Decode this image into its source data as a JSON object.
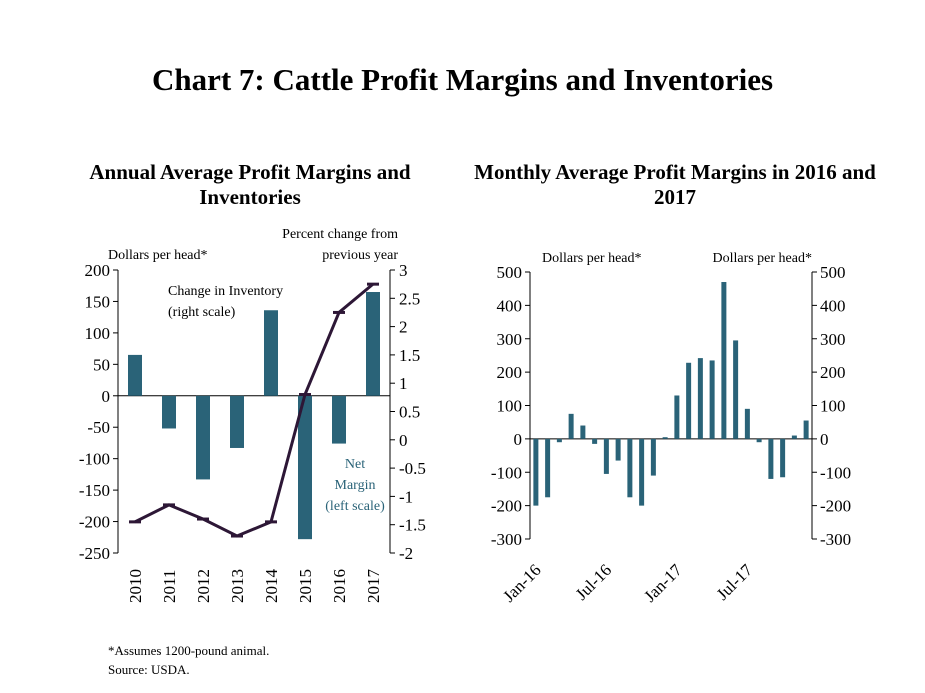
{
  "title": "Chart 7: Cattle Profit Margins and Inventories",
  "footnotes": {
    "assumption": "*Assumes 1200-pound animal.",
    "source": "Source: USDA."
  },
  "colors": {
    "bar": "#2a6378",
    "line": "#2d1736",
    "axis": "#000000"
  },
  "chart_data": [
    {
      "type": "bar",
      "title": "Annual Average Profit Margins and Inventories",
      "left_axis_label": "Dollars per head*",
      "right_axis_label_line1": "Percent change from",
      "right_axis_label_line2": "previous year",
      "categories": [
        "2010",
        "2011",
        "2012",
        "2013",
        "2014",
        "2015",
        "2016",
        "2017"
      ],
      "series": [
        {
          "name": "Net Margin (left scale)",
          "type": "bar",
          "axis": "left",
          "values": [
            65,
            -52,
            -133,
            -83,
            136,
            -228,
            -76,
            165
          ]
        },
        {
          "name": "Change in Inventory (right scale)",
          "type": "line",
          "axis": "right",
          "values": [
            -1.45,
            -1.15,
            -1.4,
            -1.7,
            -1.45,
            0.8,
            2.25,
            2.75
          ]
        }
      ],
      "annotations": {
        "line_label_1": "Change in Inventory",
        "line_label_2": "(right scale)",
        "bar_label_1": "Net",
        "bar_label_2": "Margin",
        "bar_label_3": "(left scale)"
      },
      "ylim_left": [
        -250,
        200
      ],
      "ylim_right": [
        -2,
        3
      ],
      "left_ticks": [
        "200",
        "150",
        "100",
        "50",
        "0",
        "-50",
        "-100",
        "-150",
        "-200",
        "-250"
      ],
      "right_ticks": [
        "3",
        "2.5",
        "2",
        "1.5",
        "1",
        "0.5",
        "0",
        "-0.5",
        "-1",
        "-1.5",
        "-2"
      ]
    },
    {
      "type": "bar",
      "title": "Monthly Average Profit Margins in 2016 and 2017",
      "left_axis_label": "Dollars per head*",
      "right_axis_label": "Dollars per head*",
      "x": [
        "Jan-16",
        "Feb-16",
        "Mar-16",
        "Apr-16",
        "May-16",
        "Jun-16",
        "Jul-16",
        "Aug-16",
        "Sep-16",
        "Oct-16",
        "Nov-16",
        "Dec-16",
        "Jan-17",
        "Feb-17",
        "Mar-17",
        "Apr-17",
        "May-17",
        "Jun-17",
        "Jul-17",
        "Aug-17",
        "Sep-17",
        "Oct-17",
        "Nov-17",
        "Dec-17"
      ],
      "values": [
        -200,
        -175,
        -10,
        75,
        40,
        -15,
        -105,
        -65,
        -175,
        -200,
        -110,
        5,
        130,
        228,
        242,
        235,
        470,
        295,
        90,
        -10,
        -120,
        -115,
        10,
        55
      ],
      "x_tick_labels": [
        "Jan-16",
        "Jul-16",
        "Jan-17",
        "Jul-17"
      ],
      "ylim": [
        -300,
        500
      ],
      "ticks": [
        "500",
        "400",
        "300",
        "200",
        "100",
        "0",
        "-100",
        "-200",
        "-300"
      ]
    }
  ]
}
